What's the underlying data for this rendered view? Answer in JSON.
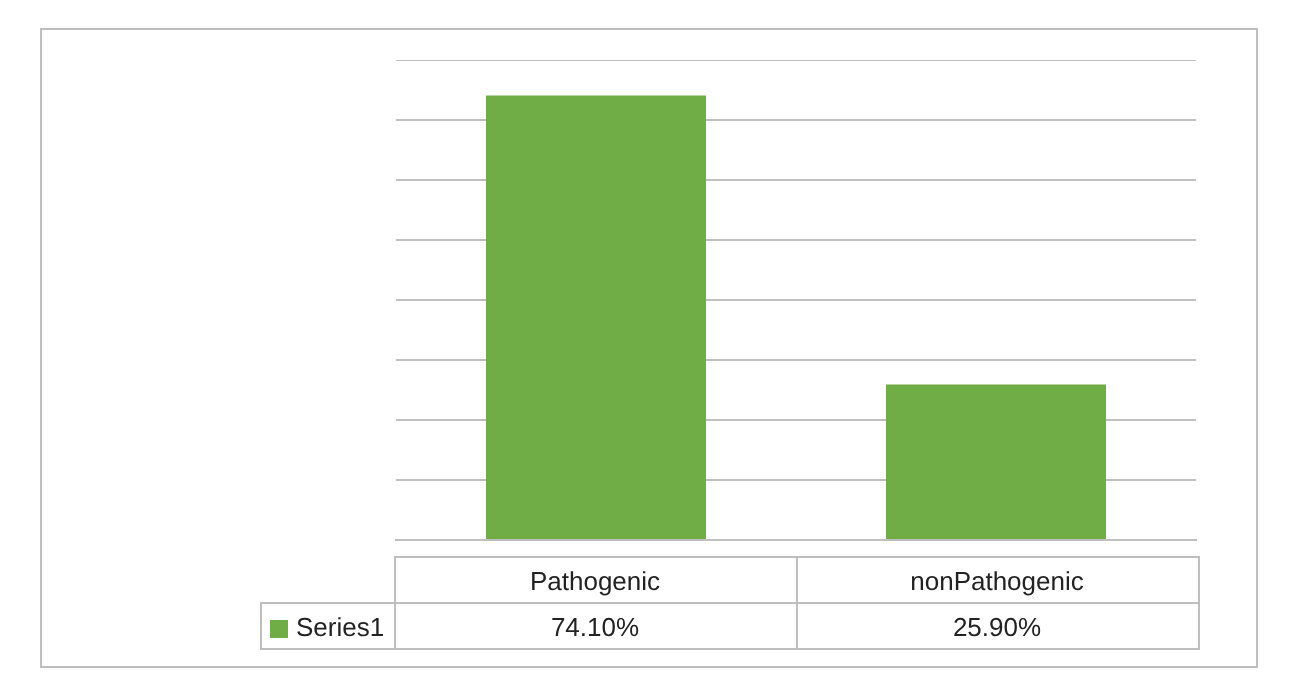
{
  "chart_data": {
    "type": "bar",
    "categories": [
      "Pathogenic",
      "nonPathogenic"
    ],
    "series": [
      {
        "name": "Series1",
        "color": "#70ad47",
        "values": [
          74.1,
          25.9
        ],
        "value_labels": [
          "74.10%",
          "25.90%"
        ]
      }
    ],
    "ylim": [
      0,
      80
    ],
    "yticks": [
      0,
      10,
      20,
      30,
      40,
      50,
      60,
      70,
      80
    ],
    "tick_labels": "x",
    "grid": "y",
    "legend": "bottom left"
  }
}
